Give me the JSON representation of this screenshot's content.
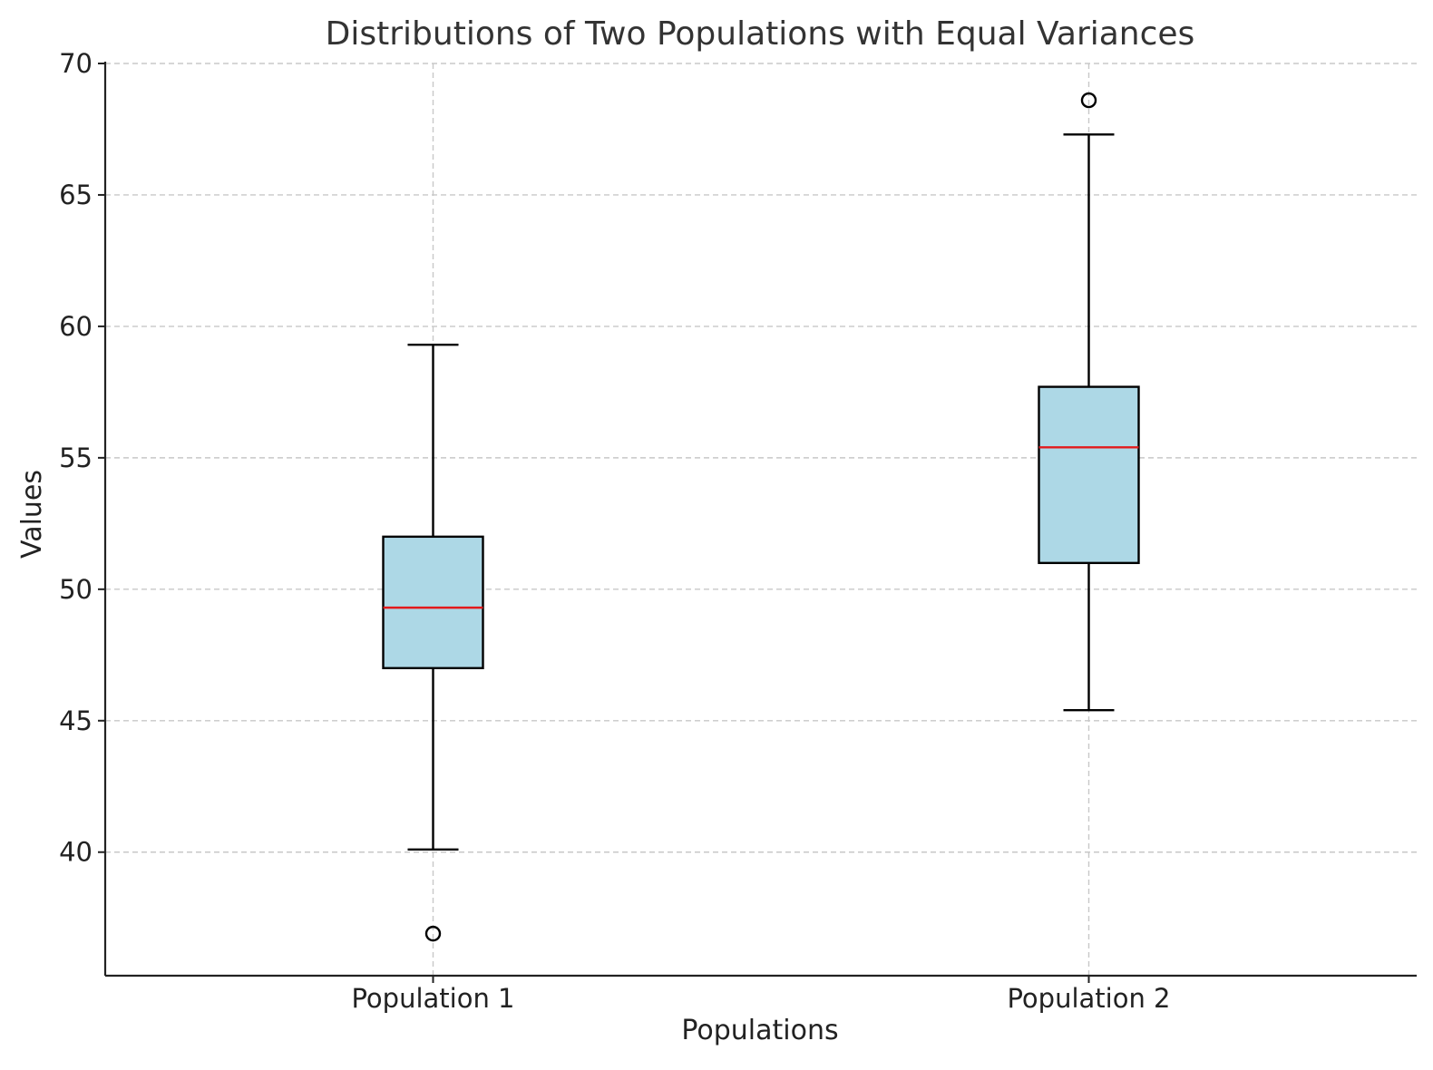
{
  "chart_data": {
    "type": "box",
    "title": "Distributions of Two Populations with Equal Variances",
    "xlabel": "Populations",
    "ylabel": "Values",
    "ylim": [
      35.3,
      70
    ],
    "yticks": [
      40,
      45,
      50,
      55,
      60,
      65,
      70
    ],
    "grid": true,
    "categories": [
      "Population 1",
      "Population 2"
    ],
    "boxes": [
      {
        "name": "Population 1",
        "whisker_low": 40.1,
        "q1": 47.0,
        "median": 49.3,
        "q3": 52.0,
        "whisker_high": 59.3,
        "outliers": [
          36.9
        ]
      },
      {
        "name": "Population 2",
        "whisker_low": 45.4,
        "q1": 51.0,
        "median": 55.4,
        "q3": 57.7,
        "whisker_high": 67.3,
        "outliers": [
          68.6
        ]
      }
    ],
    "colors": {
      "box_fill": "#add8e6",
      "median": "#e31a1c",
      "grid": "#c8c8c8"
    }
  }
}
